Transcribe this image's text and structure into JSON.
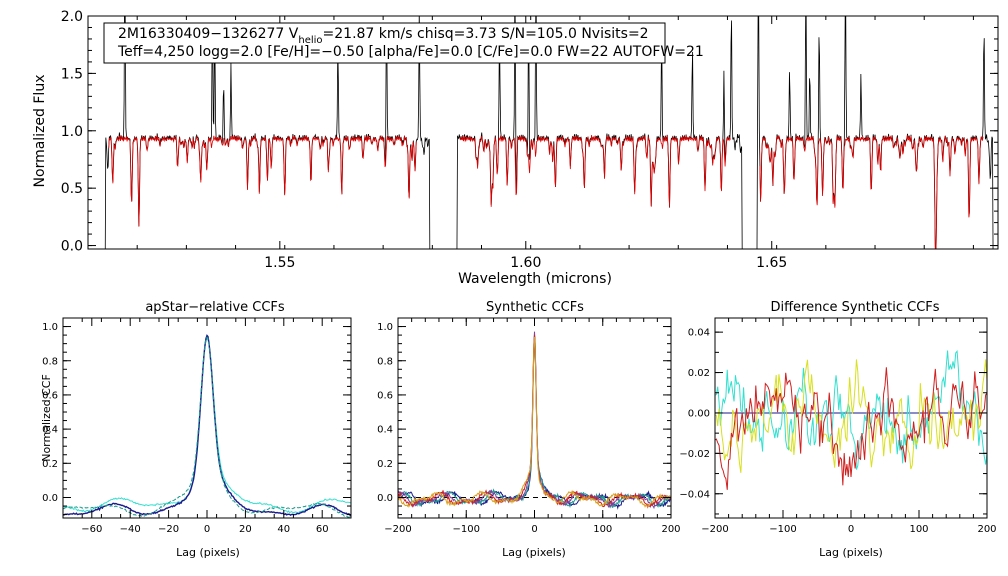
{
  "colors": {
    "axis": "#000000",
    "observed": "#000000",
    "model": "#e00000",
    "ccf_cyan": "#33e0d0",
    "ccf_blue": "#1a1a8c",
    "ccf_green": "#1c9c8c",
    "ccf_red": "#d02020",
    "ccf_yellow": "#d8e020",
    "ccf_purple": "#8040a0"
  },
  "chart_data": [
    {
      "id": "spectrum",
      "type": "line",
      "title": "",
      "xlabel": "Wavelength (microns)",
      "ylabel": "Normalized Flux",
      "xlim": [
        1.511,
        1.696
      ],
      "ylim": [
        -0.03,
        2.0
      ],
      "xticks": [
        {
          "value": 1.55,
          "label": "1.55"
        },
        {
          "value": 1.6,
          "label": "1.60"
        },
        {
          "value": 1.65,
          "label": "1.65"
        }
      ],
      "yticks": [
        {
          "value": 0.0,
          "label": "0.0"
        },
        {
          "value": 0.5,
          "label": "0.5"
        },
        {
          "value": 1.0,
          "label": "1.0"
        },
        {
          "value": 1.5,
          "label": "1.5"
        },
        {
          "value": 2.0,
          "label": "2.0"
        }
      ],
      "annotation": {
        "line1_prefix": "2M16330409−1326277  V",
        "line1_sub": "helio",
        "line1_suffix": "=21.87 km/s  chisq=3.73  S/N=105.0  Nvisits=2",
        "line2": "Teff=4,250 logg=2.0 [Fe/H]=−0.50 [alpha/Fe]=0.0 [C/Fe]=0.0 FW=22 AUTOFW=21"
      },
      "series": [
        {
          "name": "observed spectrum",
          "color": "#000000"
        },
        {
          "name": "best-fit model",
          "color": "#e00000"
        }
      ],
      "detector_chips": [
        [
          1.5145,
          1.5805
        ],
        [
          1.586,
          1.644
        ],
        [
          1.647,
          1.695
        ]
      ]
    },
    {
      "id": "apstar-ccf",
      "type": "line",
      "title": "apStar−relative CCFs",
      "xlabel": "Lag (pixels)",
      "ylabel": "Normalized CCF",
      "xlim": [
        -75,
        75
      ],
      "ylim": [
        -0.12,
        1.05
      ],
      "xticks": [
        {
          "value": -60,
          "label": "−60"
        },
        {
          "value": -40,
          "label": "−40"
        },
        {
          "value": -20,
          "label": "−20"
        },
        {
          "value": 0,
          "label": "0"
        },
        {
          "value": 20,
          "label": "20"
        },
        {
          "value": 40,
          "label": "40"
        },
        {
          "value": 60,
          "label": "60"
        }
      ],
      "yticks": [
        {
          "value": 0.0,
          "label": "0.0"
        },
        {
          "value": 0.2,
          "label": "0.2"
        },
        {
          "value": 0.4,
          "label": "0.4"
        },
        {
          "value": 0.6,
          "label": "0.6"
        },
        {
          "value": 0.8,
          "label": "0.8"
        },
        {
          "value": 1.0,
          "label": "1.0"
        }
      ],
      "series": [
        {
          "name": "visit 1",
          "color": "#33e0d0",
          "peak": 1.0,
          "width": 3.2,
          "wing": 0.32,
          "wingwidth": 16,
          "offset": 0.02
        },
        {
          "name": "visit 2",
          "color": "#1a1a8c",
          "peak": 0.99,
          "width": 3.0,
          "wing": 0.3,
          "wingwidth": 15,
          "offset": -0.02
        },
        {
          "name": "visit 3",
          "color": "#1c9c8c",
          "peak": 0.98,
          "width": 3.1,
          "wing": 0.31,
          "wingwidth": 15.5,
          "offset": -0.01
        }
      ]
    },
    {
      "id": "synthetic-ccf",
      "type": "line",
      "title": "Synthetic CCFs",
      "xlabel": "Lag (pixels)",
      "ylabel": "",
      "xlim": [
        -200,
        200
      ],
      "ylim": [
        -0.12,
        1.05
      ],
      "xticks": [
        {
          "value": -200,
          "label": "−200"
        },
        {
          "value": -100,
          "label": "−100"
        },
        {
          "value": 0,
          "label": "0"
        },
        {
          "value": 100,
          "label": "100"
        },
        {
          "value": 200,
          "label": "200"
        }
      ],
      "yticks": [
        {
          "value": 0.0,
          "label": "0.0"
        },
        {
          "value": 0.2,
          "label": "0.2"
        },
        {
          "value": 0.4,
          "label": "0.4"
        },
        {
          "value": 0.6,
          "label": "0.6"
        },
        {
          "value": 0.8,
          "label": "0.8"
        },
        {
          "value": 1.0,
          "label": "1.0"
        }
      ],
      "zero_line": 0.0,
      "series": [
        {
          "name": "visit 1",
          "color": "#1a1a8c"
        },
        {
          "name": "visit 2",
          "color": "#1c9c8c"
        },
        {
          "name": "visit 3",
          "color": "#8040a0"
        },
        {
          "name": "visit 4",
          "color": "#d02020"
        },
        {
          "name": "visit 5",
          "color": "#d8a020"
        }
      ]
    },
    {
      "id": "difference-ccf",
      "type": "line",
      "title": "Difference Synthetic CCFs",
      "xlabel": "Lag (pixels)",
      "ylabel": "",
      "xlim": [
        -200,
        200
      ],
      "ylim": [
        -0.052,
        0.047
      ],
      "xticks": [
        {
          "value": -200,
          "label": "−200"
        },
        {
          "value": -100,
          "label": "−100"
        },
        {
          "value": 0,
          "label": "0"
        },
        {
          "value": 100,
          "label": "100"
        },
        {
          "value": 200,
          "label": "200"
        }
      ],
      "yticks": [
        {
          "value": -0.04,
          "label": "−0.04"
        },
        {
          "value": -0.02,
          "label": "−0.02"
        },
        {
          "value": 0.0,
          "label": "0.00"
        },
        {
          "value": 0.02,
          "label": "0.02"
        },
        {
          "value": 0.04,
          "label": "0.04"
        }
      ],
      "zero_line": 0.0,
      "series": [
        {
          "name": "difference 1",
          "color": "#33e0d0"
        },
        {
          "name": "difference 2",
          "color": "#d8e020"
        },
        {
          "name": "difference 3",
          "color": "#d02020"
        }
      ]
    }
  ]
}
